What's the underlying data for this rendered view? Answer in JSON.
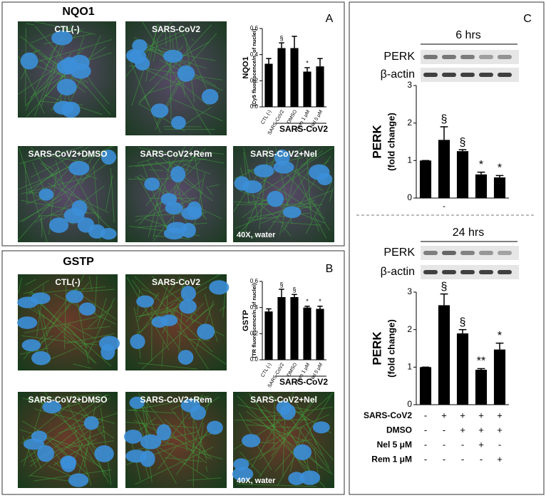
{
  "panels": [
    {
      "letter": "A",
      "title": "NQO1",
      "images": [
        "CTL(-)",
        "SARS-CoV2",
        "SARS-CoV2+DMSO",
        "SARS-CoV2+Rem",
        "SARS-CoV2+Nel"
      ],
      "magnification": "40X, water"
    },
    {
      "letter": "B",
      "title": "GSTP",
      "images": [
        "CTL(-)",
        "SARS-CoV2",
        "SARS-CoV2+DMSO",
        "SARS-CoV2+Rem",
        "SARS-CoV2+Nel"
      ],
      "magnification": "40X, water"
    },
    {
      "letter": "C",
      "blots": [
        {
          "labels": [
            "PERK",
            "β-actin"
          ]
        },
        {
          "labels": [
            "PERK",
            "β-actin"
          ]
        }
      ]
    }
  ],
  "chart_data": [
    {
      "type": "bar",
      "y_label": "NQO1",
      "y_sublabel": "(Cy5 fluorescence/n. of nuclei)",
      "group_label": "SARS-CoV2",
      "categories": [
        "CTL (-)",
        "SARS-CoV2",
        "DMSO",
        "Rem 1 μM",
        "Nel 5 μM"
      ],
      "values": [
        0.33,
        0.45,
        0.45,
        0.27,
        0.31
      ],
      "errors": [
        0.04,
        0.04,
        0.09,
        0.03,
        0.06
      ],
      "annotations": [
        null,
        "§",
        null,
        "*",
        null
      ],
      "color": "#000000",
      "ylim": [
        0,
        0.6
      ],
      "yticks": [
        {
          "value": 0,
          "label": "0.0"
        },
        0.2,
        0.4,
        0.6
      ]
    },
    {
      "type": "bar",
      "y_label": "GSTP",
      "y_sublabel": "(TR fluorescence/n. of nuclei)",
      "group_label": "SARS-CoV2",
      "categories": [
        "CTL (-)",
        "SARS-CoV2",
        "DMSO",
        "Rem 1 μM",
        "Nel 5 μM"
      ],
      "values": [
        0.37,
        0.48,
        0.48,
        0.4,
        0.39
      ],
      "errors": [
        0.02,
        0.06,
        0.02,
        0.01,
        0.02
      ],
      "annotations": [
        null,
        "§",
        "§",
        "*",
        "*"
      ],
      "color": "#000000",
      "ylim": [
        0,
        0.6
      ],
      "yticks": [
        {
          "value": 0,
          "label": "0.0"
        },
        0.2,
        0.4,
        0.6
      ]
    },
    {
      "type": "bar",
      "title": "6 hrs",
      "y_label": "PERK",
      "y_sublabel": "(fold change)",
      "categories": [
        null,
        "-",
        null,
        null,
        null
      ],
      "values": [
        1.0,
        1.55,
        1.25,
        0.63,
        0.55
      ],
      "errors": [
        0,
        0.35,
        0.04,
        0.06,
        0.05
      ],
      "annotations": [
        null,
        "§",
        "§",
        "*",
        "*"
      ],
      "color": "#000000",
      "ylim": [
        0,
        3
      ],
      "yticks": [
        0,
        1,
        2,
        3
      ]
    },
    {
      "type": "bar",
      "title": "24 hrs",
      "y_label": "PERK",
      "y_sublabel": "(fold change)",
      "categories": [
        null,
        null,
        null,
        null,
        null
      ],
      "values": [
        1.0,
        2.65,
        1.9,
        0.93,
        1.47
      ],
      "errors": [
        0,
        0.3,
        0.1,
        0.03,
        0.17
      ],
      "annotations": [
        null,
        "§",
        "§",
        "**",
        "*"
      ],
      "color": "#000000",
      "ylim": [
        0,
        3
      ],
      "yticks": [
        0,
        1,
        2,
        3
      ]
    }
  ],
  "treatments": {
    "rows": [
      {
        "name": "SARS-CoV2",
        "signs": [
          "-",
          "+",
          "+",
          "+",
          "+"
        ]
      },
      {
        "name": "DMSO",
        "signs": [
          "-",
          "-",
          "+",
          "+",
          "+"
        ]
      },
      {
        "name": "Nel 5 μM",
        "signs": [
          "-",
          "-",
          "-",
          "+",
          "-"
        ]
      },
      {
        "name": "Rem 1 μM",
        "signs": [
          "-",
          "-",
          "-",
          "-",
          "+"
        ]
      }
    ]
  }
}
